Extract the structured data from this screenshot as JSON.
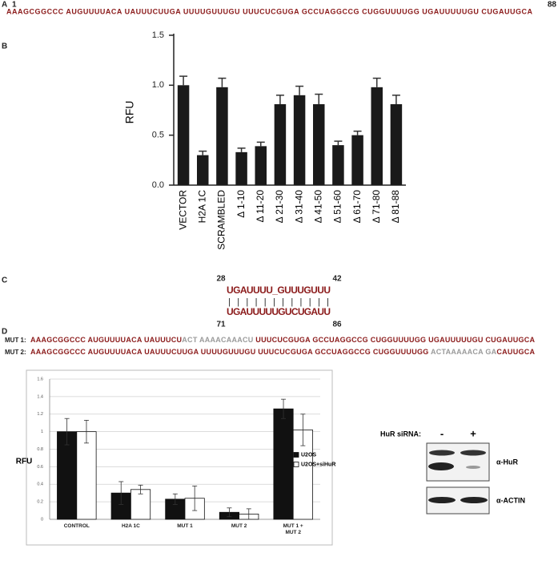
{
  "panel_labels": [
    "A",
    "B",
    "C",
    "D"
  ],
  "panel_a": {
    "start": "1",
    "end": "88",
    "sequence": "AAAGCGGCCC AUGUUUUACA UAUUUCUUGA UUUUGUUUGU UUUCUCGUGA GCCUAGGCCG CUGGUUUUGG UGAUUUUUGU CUGAUUGCA"
  },
  "chart_data": [
    {
      "type": "bar",
      "y_label": "RFU",
      "categories": [
        "VECTOR",
        "H2A 1C",
        "SCRAMBLED",
        "Δ 1-10",
        "Δ 11-20",
        "Δ 21-30",
        "Δ 31-40",
        "Δ 41-50",
        "Δ 51-60",
        "Δ 61-70",
        "Δ 71-80",
        "Δ 81-88"
      ],
      "series": [
        {
          "color": "#1a1a1a",
          "values": [
            1.0,
            0.3,
            0.98,
            0.33,
            0.39,
            0.81,
            0.9,
            0.81,
            0.4,
            0.5,
            0.98,
            0.81
          ],
          "errors": [
            0.09,
            0.04,
            0.09,
            0.04,
            0.04,
            0.09,
            0.09,
            0.1,
            0.04,
            0.04,
            0.09,
            0.09
          ]
        }
      ],
      "ylim": [
        0,
        1.5
      ],
      "yticks": [
        {
          "value": 0,
          "label": "0.0"
        },
        0.5,
        {
          "value": 1,
          "label": "1.0"
        },
        1.5
      ],
      "grid": false
    },
    {
      "type": "bar",
      "y_label": "RFU",
      "categories": [
        "CONTROL",
        "H2A 1C",
        "MUT 1",
        "MUT 2",
        "MUT 1 + MUT 2"
      ],
      "series": [
        {
          "name": "U2OS",
          "color": "#111111",
          "values": [
            1.0,
            0.3,
            0.23,
            0.08,
            1.26
          ],
          "errors": [
            0.15,
            0.13,
            0.06,
            0.05,
            0.11
          ]
        },
        {
          "name": "U2OS+siHuR",
          "color": "#ffffff",
          "values": [
            1.0,
            0.34,
            0.24,
            0.06,
            1.02
          ],
          "errors": [
            0.13,
            0.05,
            0.14,
            0.06,
            0.18
          ]
        }
      ],
      "ylim": [
        0,
        1.6
      ],
      "yticks": [
        0,
        0.2,
        0.4,
        0.6,
        0.8,
        1,
        1.2,
        1.4,
        1.6
      ],
      "grid": true,
      "legend": "right"
    }
  ],
  "panel_c": {
    "top_start": "28",
    "top_end": "42",
    "top": "UGAUUUU_GUUUGUUU",
    "pairs": "| | | | | | |   | |    | | |",
    "bottom": "UGAUUUUUGUCUGAUU",
    "bottom_start": "71",
    "bottom_end": "86"
  },
  "panel_d": {
    "mutants": [
      {
        "name": "MUT 1:",
        "segments": [
          {
            "text": "AAAGCGGCCC AUGUUUUACA UAUUUCU",
            "color": "#8b1a1a"
          },
          {
            "text": "ACT AAAACAAACU",
            "color": "#9a9a9a"
          },
          {
            "text": " UUUCUCGUGA GCCUAGGCCG CUGGUUUUGG UGAUUUUUGU CUGAUUGCA",
            "color": "#8b1a1a"
          }
        ]
      },
      {
        "name": "MUT 2:",
        "segments": [
          {
            "text": "AAAGCGGCCC AUGUUUUACA UAUUUCUUGA UUUUGUUUGU UUUCUCGUGA GCCUAGGCCG CUGGUUUUGG ",
            "color": "#8b1a1a"
          },
          {
            "text": "ACTAAAAACA GA",
            "color": "#9a9a9a"
          },
          {
            "text": "CAUUGCA",
            "color": "#8b1a1a"
          }
        ]
      }
    ]
  },
  "western_blot": {
    "condition_label": "HuR siRNA:",
    "lanes": [
      "-",
      "+"
    ],
    "antibodies": [
      "α-HuR",
      "α-ACTIN"
    ]
  }
}
